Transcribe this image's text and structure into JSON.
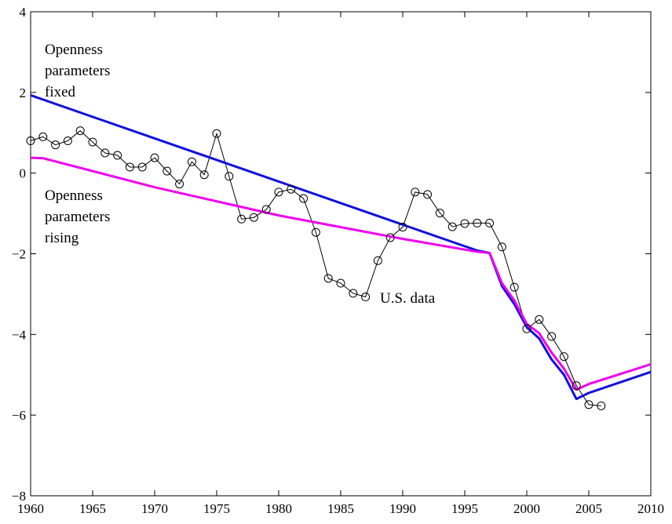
{
  "chart_data": {
    "type": "line",
    "title": "",
    "xlabel": "",
    "ylabel": "",
    "xlim": [
      1960,
      2010
    ],
    "ylim": [
      -8,
      4
    ],
    "xticks": [
      1960,
      1965,
      1970,
      1975,
      1980,
      1985,
      1990,
      1995,
      2000,
      2005,
      2010
    ],
    "yticks": [
      -8,
      -6,
      -4,
      -2,
      0,
      2,
      4
    ],
    "xtick_labels": [
      "1960",
      "1965",
      "1970",
      "1975",
      "1980",
      "1985",
      "1990",
      "1995",
      "2000",
      "2005",
      "2010"
    ],
    "ytick_labels": [
      "−8",
      "−6",
      "−4",
      "−2",
      "0",
      "2",
      "4"
    ],
    "grid": false,
    "legend": "none",
    "series": [
      {
        "color": "#000000",
        "marker": "circle",
        "x": [
          1960,
          1961,
          1962,
          1963,
          1964,
          1965,
          1966,
          1967,
          1968,
          1969,
          1970,
          1971,
          1972,
          1973,
          1974,
          1975,
          1976,
          1977,
          1978,
          1979,
          1980,
          1981,
          1982,
          1983,
          1984,
          1985,
          1986,
          1987,
          1988,
          1989,
          1990,
          1991,
          1992,
          1993,
          1994,
          1995,
          1996,
          1997,
          1998,
          1999,
          2000,
          2001,
          2002,
          2003,
          2004,
          2005,
          2006
        ],
        "y": [
          0.8,
          0.9,
          0.7,
          0.8,
          1.05,
          0.77,
          0.5,
          0.44,
          0.15,
          0.15,
          0.38,
          0.05,
          -0.27,
          0.28,
          -0.04,
          0.98,
          -0.08,
          -1.14,
          -1.1,
          -0.9,
          -0.47,
          -0.4,
          -0.63,
          -1.47,
          -2.61,
          -2.73,
          -2.98,
          -3.07,
          -2.17,
          -1.6,
          -1.34,
          -0.47,
          -0.53,
          -0.99,
          -1.33,
          -1.25,
          -1.24,
          -1.24,
          -1.83,
          -2.83,
          -3.86,
          -3.63,
          -4.05,
          -4.55,
          -5.27,
          -5.74,
          -5.77
        ]
      },
      {
        "color": "#1010dd",
        "marker": "none",
        "x": [
          1960,
          1996,
          1997,
          1998,
          1999,
          2000,
          2001,
          2002,
          2003,
          2004,
          2005,
          2010
        ],
        "y": [
          1.93,
          -1.92,
          -1.98,
          -2.8,
          -3.25,
          -3.82,
          -4.1,
          -4.62,
          -5.0,
          -5.6,
          -5.45,
          -4.93
        ]
      },
      {
        "color": "#ee00ee",
        "marker": "none",
        "x": [
          1960,
          1961,
          1970,
          1980,
          1990,
          1996,
          1997,
          1998,
          1999,
          2000,
          2001,
          2002,
          2003,
          2004,
          2005,
          2010
        ],
        "y": [
          0.38,
          0.37,
          -0.35,
          -1.05,
          -1.63,
          -1.95,
          -1.98,
          -2.73,
          -3.16,
          -3.74,
          -3.97,
          -4.45,
          -4.85,
          -5.37,
          -5.23,
          -4.74
        ]
      }
    ],
    "annotations": [
      {
        "lines": [
          "Openness",
          "parameters",
          "fixed"
        ]
      },
      {
        "lines": [
          "Openness",
          "parameters",
          "rising"
        ]
      },
      {
        "lines": [
          "U.S. data"
        ]
      }
    ]
  }
}
